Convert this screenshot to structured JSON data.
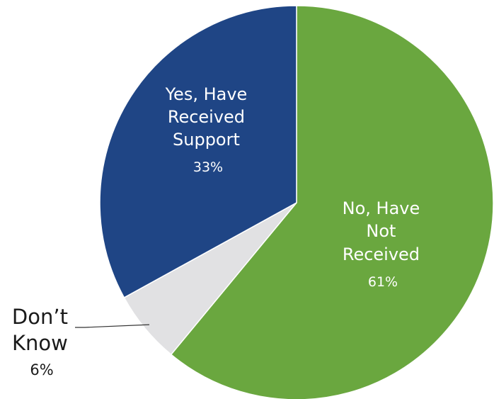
{
  "chart_data": {
    "type": "pie",
    "title": "",
    "slices": [
      {
        "label_lines": [
          "No, Have",
          "Not",
          "Received"
        ],
        "value": 61,
        "value_label": "61%",
        "color": "#6aa73f"
      },
      {
        "label_lines": [
          "Don’t",
          "Know"
        ],
        "value": 6,
        "value_label": "6%",
        "color": "#e1e1e3"
      },
      {
        "label_lines": [
          "Yes, Have",
          "Received",
          "Support"
        ],
        "value": 33,
        "value_label": "33%",
        "color": "#1f4585"
      }
    ],
    "legend": "none",
    "start_angle_deg": 0
  }
}
